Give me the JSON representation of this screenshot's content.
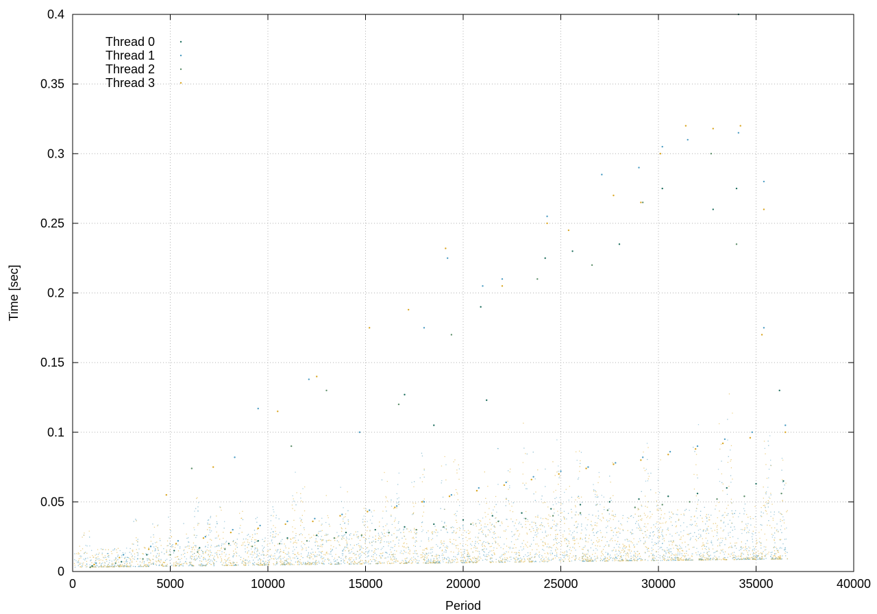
{
  "chart_data": {
    "type": "scatter",
    "title": "",
    "xlabel": "Period",
    "ylabel": "Time [sec]",
    "xlim": [
      0,
      40000
    ],
    "ylim": [
      0,
      0.4
    ],
    "xticks": [
      0,
      5000,
      10000,
      15000,
      20000,
      25000,
      30000,
      35000,
      40000
    ],
    "yticks": [
      0,
      0.05,
      0.1,
      0.15,
      0.2,
      0.25,
      0.3,
      0.35,
      0.4
    ],
    "grid": true,
    "legend_position": "top-left",
    "series": [
      {
        "name": "Thread 0",
        "color": "#1f6f5f",
        "points": [
          [
            1000,
            0.004
          ],
          [
            2500,
            0.007
          ],
          [
            3800,
            0.012
          ],
          [
            5200,
            0.015
          ],
          [
            6500,
            0.017
          ],
          [
            8000,
            0.02
          ],
          [
            9500,
            0.022
          ],
          [
            11000,
            0.024
          ],
          [
            12500,
            0.026
          ],
          [
            14000,
            0.028
          ],
          [
            15500,
            0.03
          ],
          [
            17000,
            0.032
          ],
          [
            18500,
            0.034
          ],
          [
            20000,
            0.037
          ],
          [
            21500,
            0.04
          ],
          [
            23000,
            0.042
          ],
          [
            24500,
            0.045
          ],
          [
            26000,
            0.048
          ],
          [
            27500,
            0.05
          ],
          [
            29000,
            0.052
          ],
          [
            30500,
            0.054
          ],
          [
            32000,
            0.056
          ],
          [
            33500,
            0.06
          ],
          [
            35000,
            0.063
          ],
          [
            36400,
            0.065
          ],
          [
            17000,
            0.127
          ],
          [
            18500,
            0.105
          ],
          [
            20900,
            0.19
          ],
          [
            21200,
            0.123
          ],
          [
            24200,
            0.225
          ],
          [
            25600,
            0.23
          ],
          [
            28000,
            0.235
          ],
          [
            30200,
            0.275
          ],
          [
            32800,
            0.26
          ],
          [
            34000,
            0.275
          ],
          [
            34100,
            0.4
          ],
          [
            36200,
            0.13
          ]
        ]
      },
      {
        "name": "Thread 1",
        "color": "#4a9bc2",
        "points": [
          [
            1200,
            0.006
          ],
          [
            2600,
            0.012
          ],
          [
            4000,
            0.018
          ],
          [
            5400,
            0.022
          ],
          [
            6800,
            0.025
          ],
          [
            8200,
            0.03
          ],
          [
            9600,
            0.033
          ],
          [
            11000,
            0.036
          ],
          [
            12400,
            0.038
          ],
          [
            13800,
            0.041
          ],
          [
            15200,
            0.044
          ],
          [
            16600,
            0.047
          ],
          [
            18000,
            0.05
          ],
          [
            19400,
            0.055
          ],
          [
            20800,
            0.06
          ],
          [
            22200,
            0.064
          ],
          [
            23600,
            0.068
          ],
          [
            25000,
            0.072
          ],
          [
            26400,
            0.075
          ],
          [
            27800,
            0.078
          ],
          [
            29200,
            0.082
          ],
          [
            30600,
            0.086
          ],
          [
            32000,
            0.09
          ],
          [
            33400,
            0.095
          ],
          [
            34800,
            0.1
          ],
          [
            36500,
            0.105
          ],
          [
            8300,
            0.082
          ],
          [
            9500,
            0.117
          ],
          [
            12100,
            0.138
          ],
          [
            14700,
            0.1
          ],
          [
            18000,
            0.175
          ],
          [
            19200,
            0.225
          ],
          [
            21000,
            0.205
          ],
          [
            22000,
            0.21
          ],
          [
            24300,
            0.255
          ],
          [
            27100,
            0.285
          ],
          [
            29000,
            0.29
          ],
          [
            30200,
            0.305
          ],
          [
            31500,
            0.31
          ],
          [
            34100,
            0.315
          ],
          [
            35400,
            0.28
          ],
          [
            35400,
            0.175
          ]
        ]
      },
      {
        "name": "Thread 2",
        "color": "#5d8f6a",
        "points": [
          [
            900,
            0.003
          ],
          [
            2200,
            0.006
          ],
          [
            3600,
            0.009
          ],
          [
            5000,
            0.012
          ],
          [
            6400,
            0.014
          ],
          [
            7800,
            0.016
          ],
          [
            9200,
            0.018
          ],
          [
            10600,
            0.02
          ],
          [
            12000,
            0.022
          ],
          [
            13400,
            0.024
          ],
          [
            14800,
            0.026
          ],
          [
            16200,
            0.028
          ],
          [
            17600,
            0.03
          ],
          [
            19000,
            0.032
          ],
          [
            20400,
            0.034
          ],
          [
            21800,
            0.036
          ],
          [
            23200,
            0.038
          ],
          [
            24600,
            0.04
          ],
          [
            26000,
            0.042
          ],
          [
            27400,
            0.044
          ],
          [
            28800,
            0.046
          ],
          [
            30200,
            0.048
          ],
          [
            31600,
            0.05
          ],
          [
            33000,
            0.052
          ],
          [
            34400,
            0.054
          ],
          [
            36300,
            0.056
          ],
          [
            6100,
            0.074
          ],
          [
            11200,
            0.09
          ],
          [
            13000,
            0.13
          ],
          [
            16700,
            0.12
          ],
          [
            19400,
            0.17
          ],
          [
            23800,
            0.21
          ],
          [
            26600,
            0.22
          ],
          [
            29200,
            0.265
          ],
          [
            32700,
            0.3
          ],
          [
            34000,
            0.235
          ]
        ]
      },
      {
        "name": "Thread 3",
        "color": "#d9a520",
        "points": [
          [
            1100,
            0.005
          ],
          [
            2400,
            0.01
          ],
          [
            3900,
            0.016
          ],
          [
            5300,
            0.02
          ],
          [
            6700,
            0.024
          ],
          [
            8100,
            0.028
          ],
          [
            9500,
            0.031
          ],
          [
            10900,
            0.034
          ],
          [
            12300,
            0.036
          ],
          [
            13700,
            0.04
          ],
          [
            15100,
            0.043
          ],
          [
            16500,
            0.046
          ],
          [
            17900,
            0.05
          ],
          [
            19300,
            0.054
          ],
          [
            20700,
            0.058
          ],
          [
            22100,
            0.062
          ],
          [
            23500,
            0.066
          ],
          [
            24900,
            0.07
          ],
          [
            26300,
            0.074
          ],
          [
            27700,
            0.077
          ],
          [
            29100,
            0.08
          ],
          [
            30500,
            0.084
          ],
          [
            31900,
            0.088
          ],
          [
            33300,
            0.092
          ],
          [
            34700,
            0.096
          ],
          [
            36500,
            0.1
          ],
          [
            4800,
            0.055
          ],
          [
            7200,
            0.075
          ],
          [
            10500,
            0.115
          ],
          [
            12500,
            0.14
          ],
          [
            15200,
            0.175
          ],
          [
            17200,
            0.188
          ],
          [
            19100,
            0.232
          ],
          [
            22000,
            0.205
          ],
          [
            24300,
            0.25
          ],
          [
            25400,
            0.245
          ],
          [
            27700,
            0.27
          ],
          [
            29100,
            0.265
          ],
          [
            30100,
            0.3
          ],
          [
            31400,
            0.32
          ],
          [
            32800,
            0.318
          ],
          [
            34200,
            0.32
          ],
          [
            35400,
            0.26
          ],
          [
            35300,
            0.17
          ]
        ]
      }
    ]
  }
}
